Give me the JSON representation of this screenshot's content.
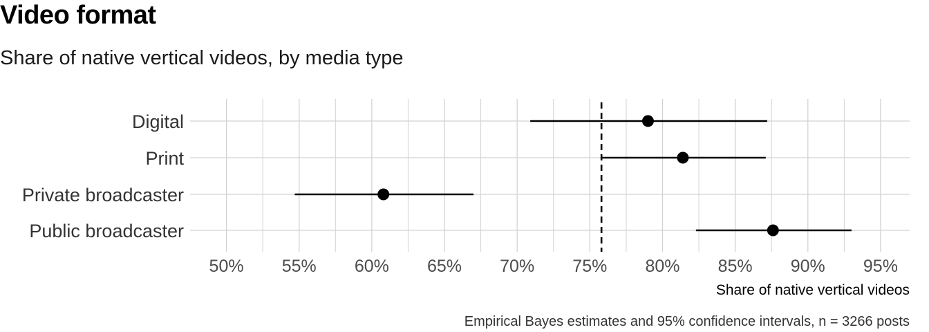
{
  "title": "Video format",
  "subtitle": "Share of native vertical videos, by media type",
  "caption": "Empirical Bayes estimates and 95% confidence intervals, n = 3266 posts",
  "colors": {
    "point": "#000000",
    "interval": "#000000",
    "grid": "#d2d2d2",
    "reference_line": "#000000",
    "tick_label": "#4d4d4d",
    "category_label": "#333333"
  },
  "chart_data": {
    "type": "scatter",
    "orientation": "horizontal",
    "categories": [
      "Digital",
      "Print",
      "Private broadcaster",
      "Public broadcaster"
    ],
    "estimates": [
      79.0,
      81.4,
      60.8,
      87.6
    ],
    "ci_lower": [
      70.9,
      75.8,
      54.7,
      82.3
    ],
    "ci_upper": [
      87.2,
      87.1,
      67.0,
      93.0
    ],
    "reference_line": 75.8,
    "xlabel": "Share of native vertical videos",
    "ylabel": "",
    "xlim": [
      47.5,
      97.0
    ],
    "x_ticks": [
      50,
      55,
      60,
      65,
      70,
      75,
      80,
      85,
      90,
      95
    ],
    "x_tick_labels": [
      "50%",
      "55%",
      "60%",
      "65%",
      "70%",
      "75%",
      "80%",
      "85%",
      "90%",
      "95%"
    ],
    "grid": true
  }
}
